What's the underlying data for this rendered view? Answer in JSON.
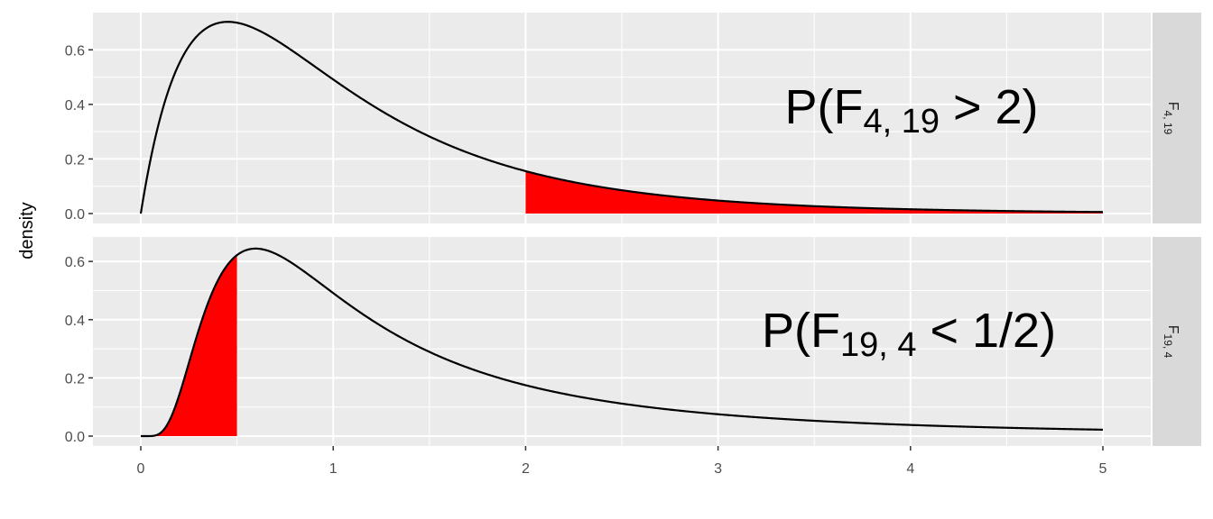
{
  "chart_data": {
    "type": "area",
    "ylabel": "density",
    "xlabel": "",
    "xlim": [
      0,
      5
    ],
    "x_ticks": [
      0,
      1,
      2,
      3,
      4,
      5
    ],
    "x_tick_labels": [
      "0",
      "1",
      "2",
      "3",
      "4",
      "5"
    ],
    "grid": true,
    "panels": [
      {
        "strip": {
          "base": "F",
          "sub": "4, 19"
        },
        "distribution": {
          "family": "F",
          "df1": 4,
          "df2": 19
        },
        "ylim": [
          0,
          0.7
        ],
        "y_ticks": [
          0.0,
          0.2,
          0.4,
          0.6
        ],
        "y_tick_labels": [
          "0.0",
          "0.2",
          "0.4",
          "0.6"
        ],
        "shaded_region": {
          "from": 2,
          "to": 5,
          "color": "#ff0000"
        },
        "annotation": {
          "prefix": "P",
          "var": "F",
          "sub": "4, 19",
          "op": " > ",
          "rhs": "2"
        },
        "line_color": "#000000"
      },
      {
        "strip": {
          "base": "F",
          "sub": "19, 4"
        },
        "distribution": {
          "family": "F",
          "df1": 19,
          "df2": 4
        },
        "ylim": [
          0,
          0.65
        ],
        "y_ticks": [
          0.0,
          0.2,
          0.4,
          0.6
        ],
        "y_tick_labels": [
          "0.0",
          "0.2",
          "0.4",
          "0.6"
        ],
        "shaded_region": {
          "from": 0,
          "to": 0.5,
          "color": "#ff0000"
        },
        "annotation": {
          "prefix": "P",
          "var": "F",
          "sub": "19, 4",
          "op": " < ",
          "rhs": "1/2"
        },
        "line_color": "#000000"
      }
    ],
    "colors": {
      "panel_bg": "#ebebeb",
      "strip_bg": "#d9d9d9",
      "grid": "#ffffff",
      "shade": "#ff0000"
    }
  }
}
